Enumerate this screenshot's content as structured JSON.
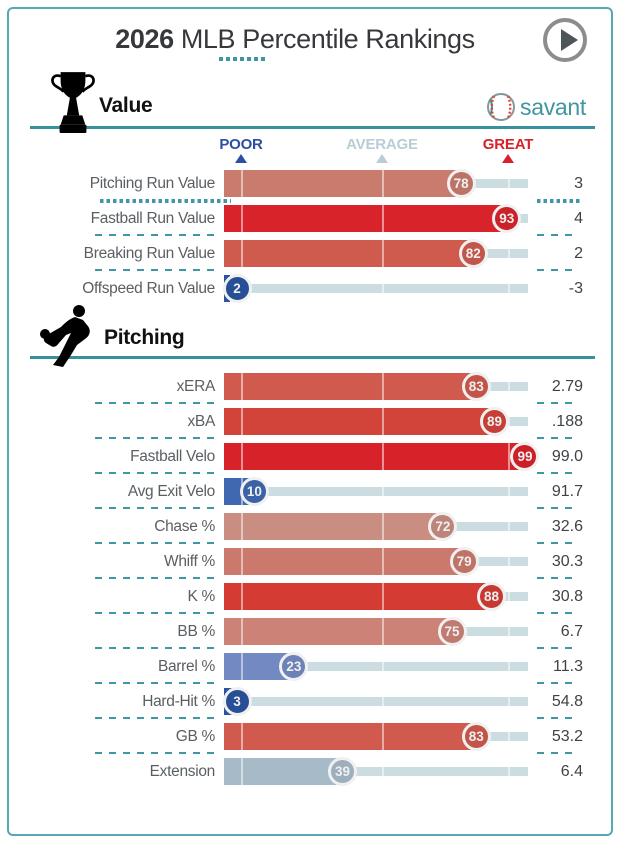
{
  "header": {
    "year": "2026",
    "title": "MLB Percentile Rankings"
  },
  "branding": {
    "logo_text": "savant",
    "accent_color": "#4095a4"
  },
  "scale": {
    "poor": "POOR",
    "average": "AVERAGE",
    "great": "GREAT",
    "poor_color": "#2b4fa1",
    "average_color": "#b9cdd6",
    "great_color": "#d8222a"
  },
  "sections": [
    {
      "title": "Value",
      "icon": "trophy-icon",
      "rows": [
        {
          "label": "Pitching Run Value",
          "percentile": 78,
          "value": "3",
          "color": "#c97b6e",
          "highlighted": false
        },
        {
          "label": "Fastball Run Value",
          "percentile": 93,
          "value": "4",
          "color": "#d8232b",
          "highlighted": true
        },
        {
          "label": "Breaking Run Value",
          "percentile": 82,
          "value": "2",
          "color": "#cf5b4f",
          "highlighted": false
        },
        {
          "label": "Offspeed Run Value",
          "percentile": 2,
          "value": "-3",
          "color": "#2b53a0",
          "highlighted": false
        }
      ]
    },
    {
      "title": "Pitching",
      "icon": "pitcher-icon",
      "rows": [
        {
          "label": "xERA",
          "percentile": 83,
          "value": "2.79",
          "color": "#cf5a4d",
          "highlighted": false
        },
        {
          "label": "xBA",
          "percentile": 89,
          "value": ".188",
          "color": "#d2433a",
          "highlighted": false
        },
        {
          "label": "Fastball Velo",
          "percentile": 99,
          "value": "99.0",
          "color": "#d8222a",
          "highlighted": false
        },
        {
          "label": "Avg Exit Velo",
          "percentile": 10,
          "value": "91.7",
          "color": "#3f68b1",
          "highlighted": false
        },
        {
          "label": "Chase %",
          "percentile": 72,
          "value": "32.6",
          "color": "#c98d82",
          "highlighted": false
        },
        {
          "label": "Whiff %",
          "percentile": 79,
          "value": "30.3",
          "color": "#cb796d",
          "highlighted": false
        },
        {
          "label": "K %",
          "percentile": 88,
          "value": "30.8",
          "color": "#d43c33",
          "highlighted": false
        },
        {
          "label": "BB %",
          "percentile": 75,
          "value": "6.7",
          "color": "#cc8276",
          "highlighted": false
        },
        {
          "label": "Barrel %",
          "percentile": 23,
          "value": "11.3",
          "color": "#7389c1",
          "highlighted": false
        },
        {
          "label": "Hard-Hit %",
          "percentile": 3,
          "value": "54.8",
          "color": "#2b53a0",
          "highlighted": false
        },
        {
          "label": "GB %",
          "percentile": 83,
          "value": "53.2",
          "color": "#cf5a4d",
          "highlighted": false
        },
        {
          "label": "Extension",
          "percentile": 39,
          "value": "6.4",
          "color": "#a7bac8",
          "highlighted": false
        }
      ]
    }
  ],
  "chart_data": [
    {
      "type": "bar",
      "title": "Value",
      "categories": [
        "Pitching Run Value",
        "Fastball Run Value",
        "Breaking Run Value",
        "Offspeed Run Value"
      ],
      "series": [
        {
          "name": "percentile",
          "values": [
            78,
            93,
            82,
            2
          ]
        },
        {
          "name": "stat_value",
          "values": [
            3,
            4,
            2,
            -3
          ]
        }
      ],
      "xlim": [
        0,
        100
      ],
      "markers": {
        "poor": 5,
        "average": 50,
        "great": 93
      },
      "legend_position": "top"
    },
    {
      "type": "bar",
      "title": "Pitching",
      "categories": [
        "xERA",
        "xBA",
        "Fastball Velo",
        "Avg Exit Velo",
        "Chase %",
        "Whiff %",
        "K %",
        "BB %",
        "Barrel %",
        "Hard-Hit %",
        "GB %",
        "Extension"
      ],
      "series": [
        {
          "name": "percentile",
          "values": [
            83,
            89,
            99,
            10,
            72,
            79,
            88,
            75,
            23,
            3,
            83,
            39
          ]
        },
        {
          "name": "stat_value",
          "values": [
            2.79,
            0.188,
            99.0,
            91.7,
            32.6,
            30.3,
            30.8,
            6.7,
            11.3,
            54.8,
            53.2,
            6.4
          ]
        }
      ],
      "xlim": [
        0,
        100
      ],
      "markers": {
        "poor": 5,
        "average": 50,
        "great": 93
      },
      "legend_position": "top"
    }
  ]
}
